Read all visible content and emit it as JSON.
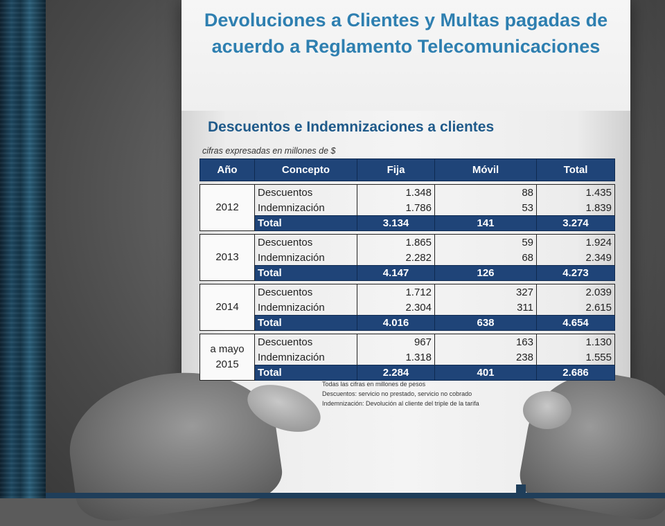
{
  "title": "Devoluciones a Clientes y Multas pagadas de acuerdo a Reglamento Telecomunicaciones",
  "subtitle": "Descuentos e Indemnizaciones a clientes",
  "caption": "cifras expresadas en millones de $",
  "table": {
    "headers": [
      "Año",
      "Concepto",
      "Fija",
      "Móvil",
      "Total"
    ],
    "groups": [
      {
        "year": "2012",
        "rows": [
          {
            "concepto": "Descuentos",
            "fija": "1.348",
            "movil": "88",
            "total": "1.435"
          },
          {
            "concepto": "Indemnización",
            "fija": "1.786",
            "movil": "53",
            "total": "1.839"
          }
        ],
        "total": {
          "label": "Total",
          "fija": "3.134",
          "movil": "141",
          "total": "3.274"
        }
      },
      {
        "year": "2013",
        "rows": [
          {
            "concepto": "Descuentos",
            "fija": "1.865",
            "movil": "59",
            "total": "1.924"
          },
          {
            "concepto": "Indemnización",
            "fija": "2.282",
            "movil": "68",
            "total": "2.349"
          }
        ],
        "total": {
          "label": "Total",
          "fija": "4.147",
          "movil": "126",
          "total": "4.273"
        }
      },
      {
        "year": "2014",
        "rows": [
          {
            "concepto": "Descuentos",
            "fija": "1.712",
            "movil": "327",
            "total": "2.039"
          },
          {
            "concepto": "Indemnización",
            "fija": "2.304",
            "movil": "311",
            "total": "2.615"
          }
        ],
        "total": {
          "label": "Total",
          "fija": "4.016",
          "movil": "638",
          "total": "4.654"
        }
      },
      {
        "year": "a mayo 2015",
        "rows": [
          {
            "concepto": "Descuentos",
            "fija": "967",
            "movil": "163",
            "total": "1.130"
          },
          {
            "concepto": "Indemnización",
            "fija": "1.318",
            "movil": "238",
            "total": "1.555"
          }
        ],
        "total": {
          "label": "Total",
          "fija": "2.284",
          "movil": "401",
          "total": "2.686"
        }
      }
    ]
  },
  "notes": [
    "Todas las cifras en millones de pesos",
    "Descuentos: servicio no prestado, servicio no cobrado",
    "Indemnización: Devolución al cliente del triple de la tarifa"
  ],
  "colors": {
    "title": "#2e7fb0",
    "subtitle": "#1f5a8a",
    "header_bg": "#1f4478",
    "strip": "#1f4a63"
  }
}
